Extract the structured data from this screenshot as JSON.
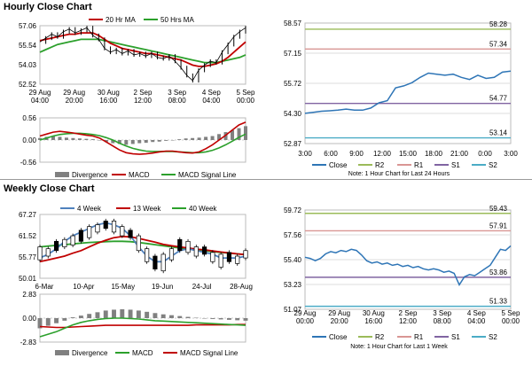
{
  "sections": {
    "hourly_title": "Hourly Close Chart",
    "weekly_title": "Weekly Close Chart"
  },
  "colors": {
    "price": "#000000",
    "ma_short": "#c00000",
    "ma_long": "#2ca02c",
    "ma_mid": "#4f81bd",
    "close_line": "#2e75b6",
    "r2": "#9bbb59",
    "r1": "#d99694",
    "s1": "#8064a2",
    "s2": "#4bacc6",
    "macd": "#c00000",
    "signal": "#2ca02c",
    "divergence": "#808080"
  },
  "chart_data": [
    {
      "id": "hourly_price",
      "type": "line",
      "legend": [
        "20 Hr MA",
        "50 Hrs MA"
      ],
      "ylim": [
        52.52,
        57.06
      ],
      "yticks": [
        "57.06",
        "55.54",
        "54.03",
        "52.52"
      ],
      "xticks": [
        [
          "29 Aug",
          "04:00"
        ],
        [
          "29 Aug",
          "20:00"
        ],
        [
          "30 Aug",
          "16:00"
        ],
        [
          "2 Sep",
          "12:00"
        ],
        [
          "3 Sep",
          "08:00"
        ],
        [
          "4 Sep",
          "04:00"
        ],
        [
          "5 Sep",
          "00:00"
        ]
      ],
      "series": [
        {
          "name": "Close",
          "values": [
            55.8,
            56.1,
            56.4,
            56.2,
            56.6,
            56.8,
            56.5,
            56.7,
            56.9,
            56.3,
            56.0,
            55.3,
            55.0,
            55.2,
            54.9,
            55.1,
            54.8,
            54.9,
            54.7,
            54.9,
            54.6,
            54.5,
            54.7,
            54.3,
            53.8,
            53.2,
            52.8,
            53.6,
            54.0,
            54.3,
            54.2,
            55.0,
            55.6,
            56.2,
            56.6,
            56.9
          ]
        },
        {
          "name": "20 Hr MA",
          "values": [
            55.9,
            56.0,
            56.1,
            56.2,
            56.3,
            56.4,
            56.4,
            56.5,
            56.5,
            56.5,
            56.3,
            56.0,
            55.7,
            55.5,
            55.3,
            55.2,
            55.1,
            55.0,
            54.9,
            54.9,
            54.8,
            54.7,
            54.6,
            54.5,
            54.4,
            54.2,
            54.0,
            53.9,
            53.9,
            54.0,
            54.1,
            54.3,
            54.6,
            55.0,
            55.4,
            55.8
          ]
        },
        {
          "name": "50 Hrs MA",
          "values": [
            55.0,
            55.2,
            55.4,
            55.6,
            55.7,
            55.8,
            55.9,
            56.0,
            56.0,
            56.0,
            56.0,
            55.9,
            55.8,
            55.7,
            55.6,
            55.5,
            55.4,
            55.3,
            55.2,
            55.1,
            55.0,
            54.9,
            54.8,
            54.7,
            54.6,
            54.5,
            54.4,
            54.3,
            54.2,
            54.2,
            54.2,
            54.3,
            54.4,
            54.5,
            54.6,
            54.8
          ]
        }
      ]
    },
    {
      "id": "hourly_macd",
      "type": "line",
      "ylim": [
        -0.56,
        0.56
      ],
      "yticks": [
        "0.56",
        "0.00",
        "-0.56"
      ],
      "legend": [
        "Divergence",
        "MACD",
        "MACD Signal Line"
      ],
      "divergence": [
        0.05,
        0.08,
        0.1,
        0.08,
        0.06,
        0.05,
        0.04,
        0.03,
        0.02,
        0.0,
        -0.05,
        -0.08,
        -0.1,
        -0.12,
        -0.1,
        -0.08,
        -0.07,
        -0.05,
        -0.04,
        -0.02,
        0.0,
        0.02,
        0.04,
        0.05,
        0.06,
        0.08,
        0.1,
        0.15,
        0.2,
        0.25,
        0.3,
        0.35
      ],
      "series": [
        {
          "name": "MACD",
          "values": [
            0.1,
            0.15,
            0.2,
            0.22,
            0.2,
            0.18,
            0.15,
            0.12,
            0.1,
            0.05,
            -0.05,
            -0.15,
            -0.25,
            -0.32,
            -0.35,
            -0.36,
            -0.35,
            -0.33,
            -0.3,
            -0.28,
            -0.28,
            -0.3,
            -0.32,
            -0.33,
            -0.3,
            -0.22,
            -0.12,
            0.0,
            0.12,
            0.25,
            0.38,
            0.45
          ]
        },
        {
          "name": "MACD Signal Line",
          "values": [
            0.0,
            0.05,
            0.1,
            0.14,
            0.16,
            0.17,
            0.17,
            0.16,
            0.14,
            0.11,
            0.06,
            0.0,
            -0.08,
            -0.15,
            -0.21,
            -0.25,
            -0.28,
            -0.29,
            -0.29,
            -0.29,
            -0.29,
            -0.3,
            -0.31,
            -0.32,
            -0.32,
            -0.3,
            -0.26,
            -0.2,
            -0.12,
            -0.03,
            0.07,
            0.15
          ]
        }
      ]
    },
    {
      "id": "hourly_close",
      "type": "line",
      "ylim": [
        52.87,
        58.57
      ],
      "yticks": [
        "58.57",
        "57.15",
        "55.72",
        "54.30",
        "52.87"
      ],
      "xticks": [
        "3:00",
        "6:00",
        "9:00",
        "12:00",
        "15:00",
        "18:00",
        "21:00",
        "0:00",
        "3:00"
      ],
      "levels": [
        {
          "name": "R2",
          "value": 58.28,
          "label": "58.28"
        },
        {
          "name": "R1",
          "value": 57.34,
          "label": "57.34"
        },
        {
          "name": "S1",
          "value": 54.77,
          "label": "54.77"
        },
        {
          "name": "S2",
          "value": 53.14,
          "label": "53.14"
        }
      ],
      "series": [
        {
          "name": "Close",
          "values": [
            54.3,
            54.35,
            54.4,
            54.42,
            54.45,
            54.5,
            54.45,
            54.45,
            54.55,
            54.8,
            54.9,
            55.5,
            55.6,
            55.75,
            56.0,
            56.2,
            56.15,
            56.1,
            56.15,
            56.0,
            55.9,
            56.1,
            55.95,
            56.0,
            56.25,
            56.3
          ]
        }
      ],
      "legend": [
        "Close",
        "R2",
        "R1",
        "S1",
        "S2"
      ],
      "note": "Note: 1 Hour Chart for Last 24 Hours"
    },
    {
      "id": "weekly_price",
      "type": "line",
      "legend": [
        "4 Week",
        "13 Week",
        "40 Week"
      ],
      "ylim": [
        50.01,
        67.27
      ],
      "yticks": [
        "67.27",
        "61.52",
        "55.77",
        "50.01"
      ],
      "xticks": [
        "6-Mar",
        "10-Apr",
        "15-May",
        "19-Jun",
        "24-Jul",
        "28-Aug"
      ],
      "candles": [
        [
          55,
          58.5
        ],
        [
          56,
          58
        ],
        [
          57.5,
          60
        ],
        [
          58.5,
          60.5
        ],
        [
          59,
          61.5
        ],
        [
          60,
          63
        ],
        [
          61,
          64
        ],
        [
          62.5,
          64.5
        ],
        [
          63.5,
          65.5
        ],
        [
          62.5,
          65.5
        ],
        [
          61.5,
          64
        ],
        [
          61,
          63
        ],
        [
          57.5,
          61.5
        ],
        [
          54.5,
          58
        ],
        [
          52.5,
          56
        ],
        [
          52,
          56.5
        ],
        [
          55,
          58
        ],
        [
          57.5,
          60.5
        ],
        [
          57,
          60
        ],
        [
          56,
          58.5
        ],
        [
          56.5,
          58.5
        ],
        [
          54.5,
          57
        ],
        [
          53,
          56.5
        ],
        [
          54.5,
          57
        ],
        [
          54,
          56
        ],
        [
          55.5,
          57.5
        ]
      ],
      "series": [
        {
          "name": "4 Week",
          "values": [
            55.5,
            56.5,
            58,
            60,
            61.5,
            62.5,
            63.5,
            64.5,
            65,
            64.5,
            63.5,
            61.5,
            58.5,
            56,
            54.5,
            54.5,
            56,
            57.5,
            58,
            57.5,
            57,
            56.5,
            55.5,
            55.5,
            55.5,
            56
          ]
        },
        {
          "name": "13 Week",
          "values": [
            54.5,
            55,
            55.5,
            56,
            56.8,
            57.5,
            58.5,
            59.5,
            60.3,
            61,
            61.3,
            61.2,
            60.8,
            60.3,
            59.8,
            59.2,
            58.8,
            58.5,
            58.2,
            57.9,
            57.7,
            57.4,
            57.1,
            56.9,
            56.6,
            56.4
          ]
        },
        {
          "name": "40 Week",
          "values": [
            58.5,
            58.7,
            58.9,
            59.1,
            59.3,
            59.5,
            59.7,
            59.8,
            59.9,
            60,
            60,
            59.9,
            59.7,
            59.4,
            59.1,
            58.8,
            58.5,
            58.2,
            58,
            57.7,
            57.5,
            57.2,
            57,
            56.8,
            56.6,
            56.4
          ]
        }
      ]
    },
    {
      "id": "weekly_macd",
      "type": "line",
      "ylim": [
        -2.83,
        2.83
      ],
      "yticks": [
        "2.83",
        "0.00",
        "-2.83"
      ],
      "legend": [
        "Divergence",
        "MACD",
        "MACD Signal Line"
      ],
      "divergence": [
        -1.2,
        -0.9,
        -0.6,
        -0.3,
        0.1,
        0.3,
        0.5,
        0.7,
        0.9,
        1.0,
        1.05,
        1.0,
        0.9,
        0.75,
        0.6,
        0.45,
        0.35,
        0.25,
        0.15,
        0.05,
        -0.05,
        -0.1,
        -0.15,
        -0.2,
        -0.25,
        -0.3
      ],
      "series": [
        {
          "name": "MACD",
          "values": [
            -2.2,
            -1.9,
            -1.6,
            -1.2,
            -0.8,
            -0.5,
            -0.3,
            -0.15,
            -0.05,
            0.0,
            0.0,
            -0.05,
            -0.1,
            -0.2,
            -0.3,
            -0.35,
            -0.4,
            -0.45,
            -0.5,
            -0.55,
            -0.6,
            -0.65,
            -0.7,
            -0.75,
            -0.8,
            -0.85
          ]
        },
        {
          "name": "MACD Signal Line",
          "values": [
            -1.0,
            -1.05,
            -1.1,
            -1.1,
            -1.05,
            -1.0,
            -0.95,
            -0.9,
            -0.85,
            -0.85,
            -0.85,
            -0.85,
            -0.85,
            -0.85,
            -0.85,
            -0.85,
            -0.85,
            -0.85,
            -0.85,
            -0.8,
            -0.8,
            -0.8,
            -0.8,
            -0.8,
            -0.75,
            -0.75
          ]
        }
      ]
    },
    {
      "id": "weekly_close",
      "type": "line",
      "ylim": [
        51.07,
        59.72
      ],
      "yticks": [
        "59.72",
        "57.56",
        "55.40",
        "53.23",
        "51.07"
      ],
      "xticks": [
        [
          "29 Aug",
          "00:00"
        ],
        [
          "29 Aug",
          "20:00"
        ],
        [
          "30 Aug",
          "16:00"
        ],
        [
          "2 Sep",
          "12:00"
        ],
        [
          "3 Sep",
          "08:00"
        ],
        [
          "4 Sep",
          "04:00"
        ],
        [
          "5 Sep",
          "00:00"
        ]
      ],
      "levels": [
        {
          "name": "R2",
          "value": 59.43,
          "label": "59.43"
        },
        {
          "name": "R1",
          "value": 57.91,
          "label": "57.91"
        },
        {
          "name": "S1",
          "value": 53.86,
          "label": "53.86"
        },
        {
          "name": "S2",
          "value": 51.33,
          "label": "51.33"
        }
      ],
      "series": [
        {
          "name": "Close",
          "values": [
            55.6,
            55.5,
            55.3,
            55.5,
            55.9,
            56.1,
            56.0,
            56.2,
            56.1,
            56.3,
            56.2,
            55.8,
            55.3,
            55.1,
            55.2,
            55.0,
            55.1,
            54.9,
            55.0,
            54.8,
            54.9,
            54.7,
            54.8,
            54.6,
            54.5,
            54.6,
            54.5,
            54.3,
            54.4,
            54.2,
            53.2,
            53.9,
            54.1,
            54.0,
            54.3,
            54.6,
            54.9,
            55.6,
            56.3,
            56.2,
            56.6
          ]
        }
      ],
      "legend": [
        "Close",
        "R2",
        "R1",
        "S1",
        "S2"
      ],
      "note": "Note: 1 Hour Chart for Last 1 Week"
    }
  ]
}
